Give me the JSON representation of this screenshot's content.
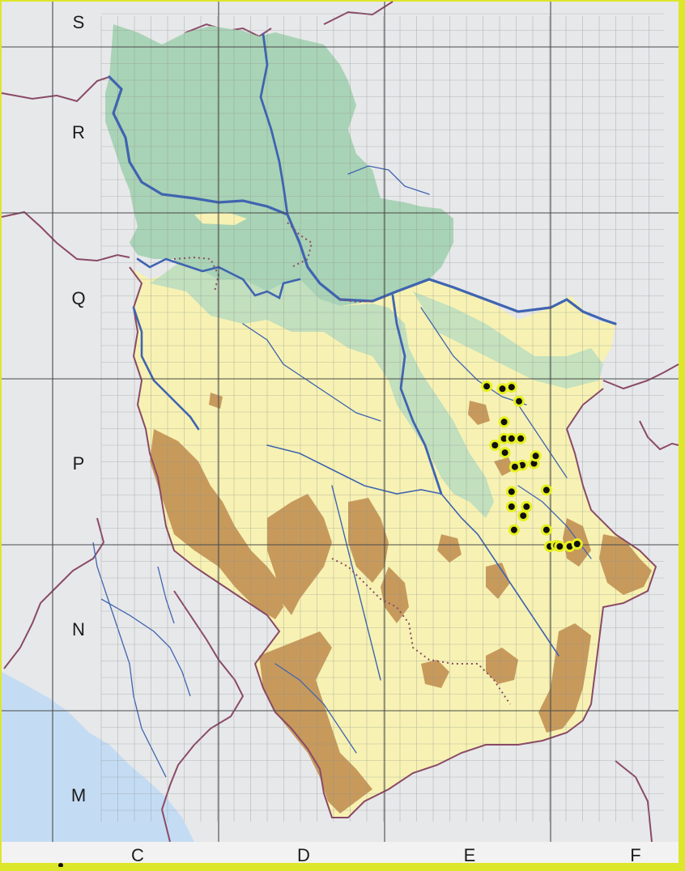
{
  "map": {
    "row_labels": [
      "S",
      "R",
      "Q",
      "P",
      "N",
      "M"
    ],
    "column_labels": [
      "C",
      "D",
      "E",
      "F"
    ],
    "colors": {
      "sea": "#c4dcf3",
      "outside_land": "#e7e8ea",
      "lowland": "#a9d3b6",
      "upland": "#f7f2b3",
      "mountain": "#c79a5c",
      "river": "#3f64b0",
      "border": "#8a4a66",
      "grid": "#4a4a4a",
      "marker_fill": "#101010",
      "marker_ring": "#e6f01f",
      "frame": "#dde72a"
    },
    "occurrence_markers": [
      {
        "col": 2.615,
        "row": 3.595
      },
      {
        "col": 2.71,
        "row": 3.61
      },
      {
        "col": 2.765,
        "row": 3.6
      },
      {
        "col": 2.81,
        "row": 3.685
      },
      {
        "col": 2.72,
        "row": 3.81
      },
      {
        "col": 2.72,
        "row": 3.91
      },
      {
        "col": 2.765,
        "row": 3.91
      },
      {
        "col": 2.82,
        "row": 3.91
      },
      {
        "col": 2.665,
        "row": 3.95
      },
      {
        "col": 2.725,
        "row": 3.995
      },
      {
        "col": 2.83,
        "row": 4.07
      },
      {
        "col": 2.785,
        "row": 4.08
      },
      {
        "col": 2.9,
        "row": 4.06
      },
      {
        "col": 2.91,
        "row": 4.015
      },
      {
        "col": 2.765,
        "row": 4.23
      },
      {
        "col": 2.765,
        "row": 4.32
      },
      {
        "col": 2.855,
        "row": 4.32
      },
      {
        "col": 2.835,
        "row": 4.375
      },
      {
        "col": 2.975,
        "row": 4.22
      },
      {
        "col": 2.78,
        "row": 4.46
      },
      {
        "col": 2.975,
        "row": 4.46
      },
      {
        "col": 2.995,
        "row": 4.56
      },
      {
        "col": 3.035,
        "row": 4.555
      },
      {
        "col": 3.055,
        "row": 4.56
      },
      {
        "col": 3.115,
        "row": 4.56
      },
      {
        "col": 3.16,
        "row": 4.545
      }
    ]
  }
}
